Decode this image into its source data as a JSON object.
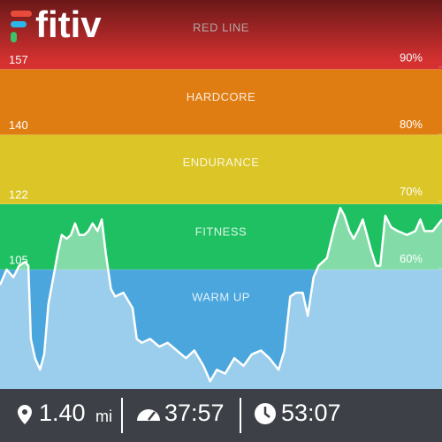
{
  "app": {
    "logo": "fitiv"
  },
  "chart_data": {
    "type": "area",
    "zones": [
      {
        "name": "WARM UP",
        "color": "#4aa6dc"
      },
      {
        "name": "FITNESS",
        "color": "#1ec062"
      },
      {
        "name": "ENDURANCE",
        "color": "#dcc526"
      },
      {
        "name": "HARDCORE",
        "color": "#e07d12"
      },
      {
        "name": "RED LINE",
        "color": "#d63131"
      }
    ],
    "ylim": [
      74,
      175
    ],
    "yticks": [
      105,
      122,
      140,
      157
    ],
    "y2lim": [
      42,
      100
    ],
    "y2ticks": [
      {
        "value": 60,
        "label": "60%"
      },
      {
        "value": 70,
        "label": "70%"
      },
      {
        "value": 80,
        "label": "80%"
      },
      {
        "value": 90,
        "label": "90%"
      }
    ],
    "xlim": [
      0,
      53
    ],
    "x": [
      0,
      0.8,
      1.6,
      2.3,
      3.0,
      3.4,
      3.7,
      4.2,
      4.8,
      5.3,
      5.8,
      6.4,
      6.9,
      7.4,
      8.0,
      8.5,
      9.0,
      9.5,
      10.1,
      10.6,
      11.1,
      11.7,
      12.2,
      12.7,
      13.3,
      13.8,
      14.8,
      15.9,
      16.4,
      17.0,
      18.0,
      19.1,
      20.1,
      21.2,
      22.3,
      23.3,
      24.4,
      25.2,
      26.0,
      27.0,
      28.1,
      29.2,
      30.2,
      31.3,
      32.3,
      33.4,
      34.1,
      34.8,
      35.5,
      36.3,
      36.9,
      37.6,
      38.2,
      39.2,
      40.1,
      40.8,
      41.3,
      41.9,
      42.4,
      42.9,
      43.5,
      44.0,
      44.5,
      45.1,
      45.6,
      46.2,
      46.9,
      47.7,
      48.8,
      49.8,
      50.4,
      50.9,
      51.9,
      53.0
    ],
    "values": [
      101,
      105,
      103,
      106,
      107,
      106,
      87,
      82,
      79,
      83,
      96,
      103,
      109,
      114,
      113,
      114,
      117,
      114,
      114,
      115,
      117,
      115,
      118,
      109,
      100,
      98,
      99,
      95,
      87,
      86,
      87,
      85,
      86,
      84,
      82,
      84,
      80,
      76,
      79,
      78,
      82,
      80,
      83,
      84,
      82,
      79,
      84,
      98,
      99,
      99,
      93,
      103,
      106,
      108,
      116,
      121,
      119,
      115,
      113,
      115,
      118,
      114,
      110,
      106,
      106,
      119,
      116,
      115,
      114,
      115,
      118,
      115,
      115,
      118
    ],
    "line_color": "#ffffff"
  },
  "stats": [
    {
      "value": "1.40",
      "unit": "mi"
    },
    {
      "value": "37:57"
    },
    {
      "value": "53:07"
    }
  ]
}
